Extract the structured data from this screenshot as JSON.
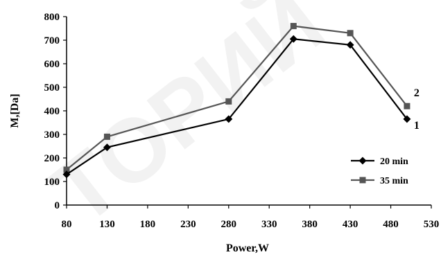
{
  "watermark": "ТОРИЙ",
  "chart_data": {
    "type": "line",
    "xlabel": "Power,W",
    "ylabel": "M,[Da]",
    "xlim": [
      80,
      530
    ],
    "ylim": [
      0,
      800
    ],
    "xticks": [
      80,
      130,
      180,
      230,
      280,
      330,
      380,
      430,
      480,
      530
    ],
    "yticks": [
      0,
      100,
      200,
      300,
      400,
      500,
      600,
      700,
      800
    ],
    "legend_position": "right",
    "series": [
      {
        "name": "20 min",
        "curve_label": "1",
        "color": "#000000",
        "marker": "diamond",
        "x": [
          80,
          130,
          280,
          360,
          430,
          500
        ],
        "y": [
          130,
          245,
          365,
          705,
          680,
          365
        ]
      },
      {
        "name": "35 min",
        "curve_label": "2",
        "color": "#555555",
        "marker": "square",
        "x": [
          80,
          130,
          280,
          360,
          430,
          500
        ],
        "y": [
          150,
          290,
          440,
          760,
          730,
          420
        ]
      }
    ]
  }
}
